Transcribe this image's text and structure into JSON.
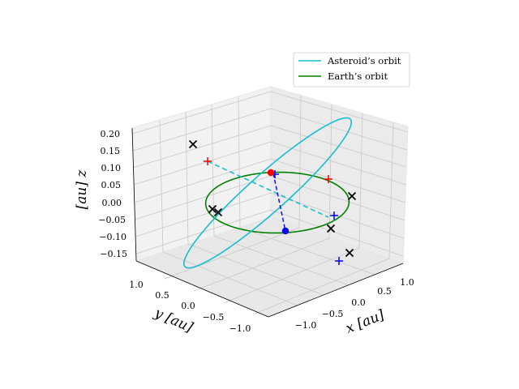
{
  "chart_data": {
    "type": "line3d",
    "xlabel": "$x$ [au]",
    "ylabel": "$y$ [au]",
    "zlabel": "$z$ [au]",
    "xlabel_text": "x [au]",
    "ylabel_text": "y [au]",
    "zlabel_text": "[au] z",
    "x_ticks": [
      "−1.0",
      "−0.5",
      "0.0",
      "0.5",
      "1.0"
    ],
    "y_ticks": [
      "1.0",
      "0.5",
      "0.0",
      "−0.5",
      "−1.0"
    ],
    "z_ticks": [
      "0.20",
      "0.15",
      "0.10",
      "0.05",
      "0.00",
      "−0.05",
      "−0.10",
      "−0.15"
    ],
    "xlim": [
      -1.2,
      1.2
    ],
    "ylim": [
      -1.2,
      1.2
    ],
    "zlim": [
      -0.17,
      0.22
    ],
    "grid": true,
    "legend": {
      "placement": "top-right",
      "entries": [
        {
          "label": "Asteroid’s orbit",
          "color": "#17becf"
        },
        {
          "label": "Earth’s orbit",
          "color": "#008000"
        }
      ]
    },
    "series": [
      {
        "name": "Asteroid’s orbit",
        "color": "#17becf",
        "kind": "ellipse",
        "a": 1.3,
        "e": 0.3,
        "inclination_deg": 10,
        "node_deg": 60
      },
      {
        "name": "Earth’s orbit",
        "color": "#008000",
        "kind": "circle",
        "radius": 1.0
      }
    ],
    "markers": {
      "red_dot": {
        "color": "#ff0000"
      },
      "blue_dot": {
        "color": "#0000ff"
      },
      "black_x_count": 8,
      "red_plus_count": 2,
      "blue_plus_count": 3
    }
  }
}
